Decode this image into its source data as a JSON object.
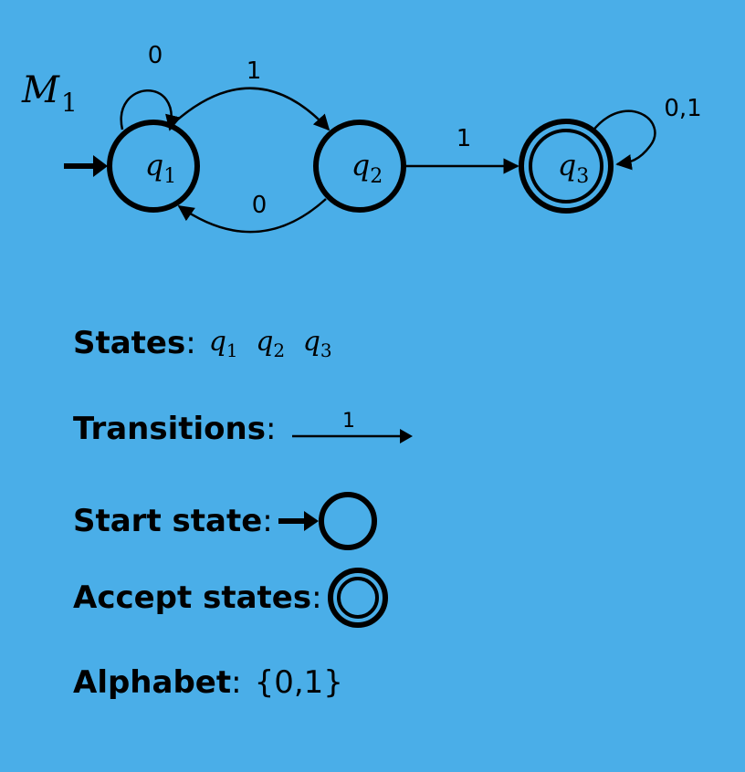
{
  "machine": {
    "name_base": "M",
    "name_sub": "1",
    "states": [
      {
        "id": "q1",
        "base": "q",
        "sub": "1",
        "start": true,
        "accept": false
      },
      {
        "id": "q2",
        "base": "q",
        "sub": "2",
        "start": false,
        "accept": false
      },
      {
        "id": "q3",
        "base": "q",
        "sub": "3",
        "start": false,
        "accept": true
      }
    ],
    "transitions": [
      {
        "from": "q1",
        "to": "q1",
        "label": "0"
      },
      {
        "from": "q1",
        "to": "q2",
        "label": "1"
      },
      {
        "from": "q2",
        "to": "q1",
        "label": "0"
      },
      {
        "from": "q2",
        "to": "q3",
        "label": "1"
      },
      {
        "from": "q3",
        "to": "q3",
        "label": "0,1"
      }
    ]
  },
  "legend": {
    "states_label": "States",
    "transitions_label": "Transitions",
    "transition_example_label": "1",
    "start_label": "Start state",
    "accept_label": "Accept states",
    "alphabet_label": "Alphabet",
    "alphabet_value": "{0,1}",
    "colon": ":"
  }
}
